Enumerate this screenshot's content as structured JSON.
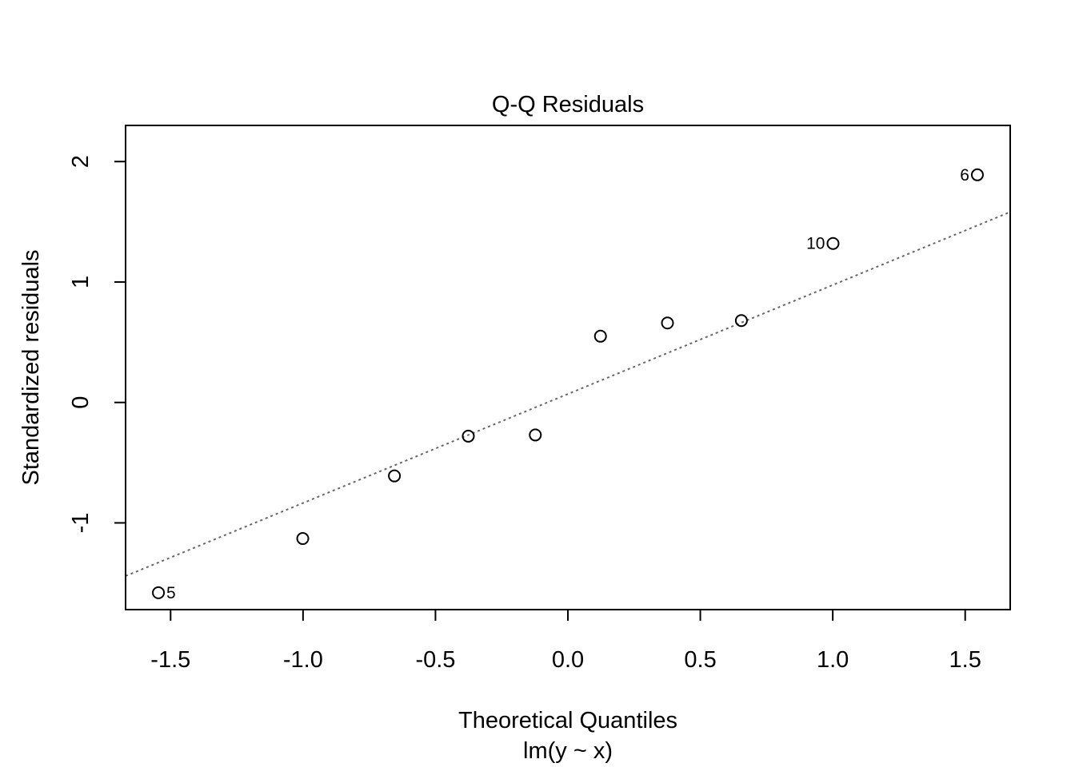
{
  "chart_data": {
    "type": "scatter",
    "title": "Q-Q Residuals",
    "xlabel": "Theoretical Quantiles",
    "subtitle": "lm(y ~ x)",
    "ylabel": "Standardized residuals",
    "xlim": [
      -1.67,
      1.67
    ],
    "ylim": [
      -1.72,
      2.3
    ],
    "x_ticks": [
      -1.5,
      -1.0,
      -0.5,
      0.0,
      0.5,
      1.0,
      1.5
    ],
    "x_tick_labels": [
      "-1.5",
      "-1.0",
      "-0.5",
      "0.0",
      "0.5",
      "1.0",
      "1.5"
    ],
    "y_ticks": [
      -1,
      0,
      1,
      2
    ],
    "y_tick_labels": [
      "-1",
      "0",
      "1",
      "2"
    ],
    "grid": false,
    "points": [
      {
        "x": -1.546,
        "y": -1.58,
        "label": "5",
        "label_side": "right"
      },
      {
        "x": -1.001,
        "y": -1.13
      },
      {
        "x": -0.655,
        "y": -0.61
      },
      {
        "x": -0.376,
        "y": -0.28
      },
      {
        "x": -0.123,
        "y": -0.27
      },
      {
        "x": 0.123,
        "y": 0.55
      },
      {
        "x": 0.376,
        "y": 0.66
      },
      {
        "x": 0.655,
        "y": 0.68
      },
      {
        "x": 1.001,
        "y": 1.32,
        "label": "10",
        "label_side": "left"
      },
      {
        "x": 1.546,
        "y": 1.89,
        "label": "6",
        "label_side": "left"
      }
    ],
    "reference_line": {
      "slope": 0.905,
      "intercept": 0.07,
      "style": "dotted",
      "color": "#666666"
    }
  }
}
